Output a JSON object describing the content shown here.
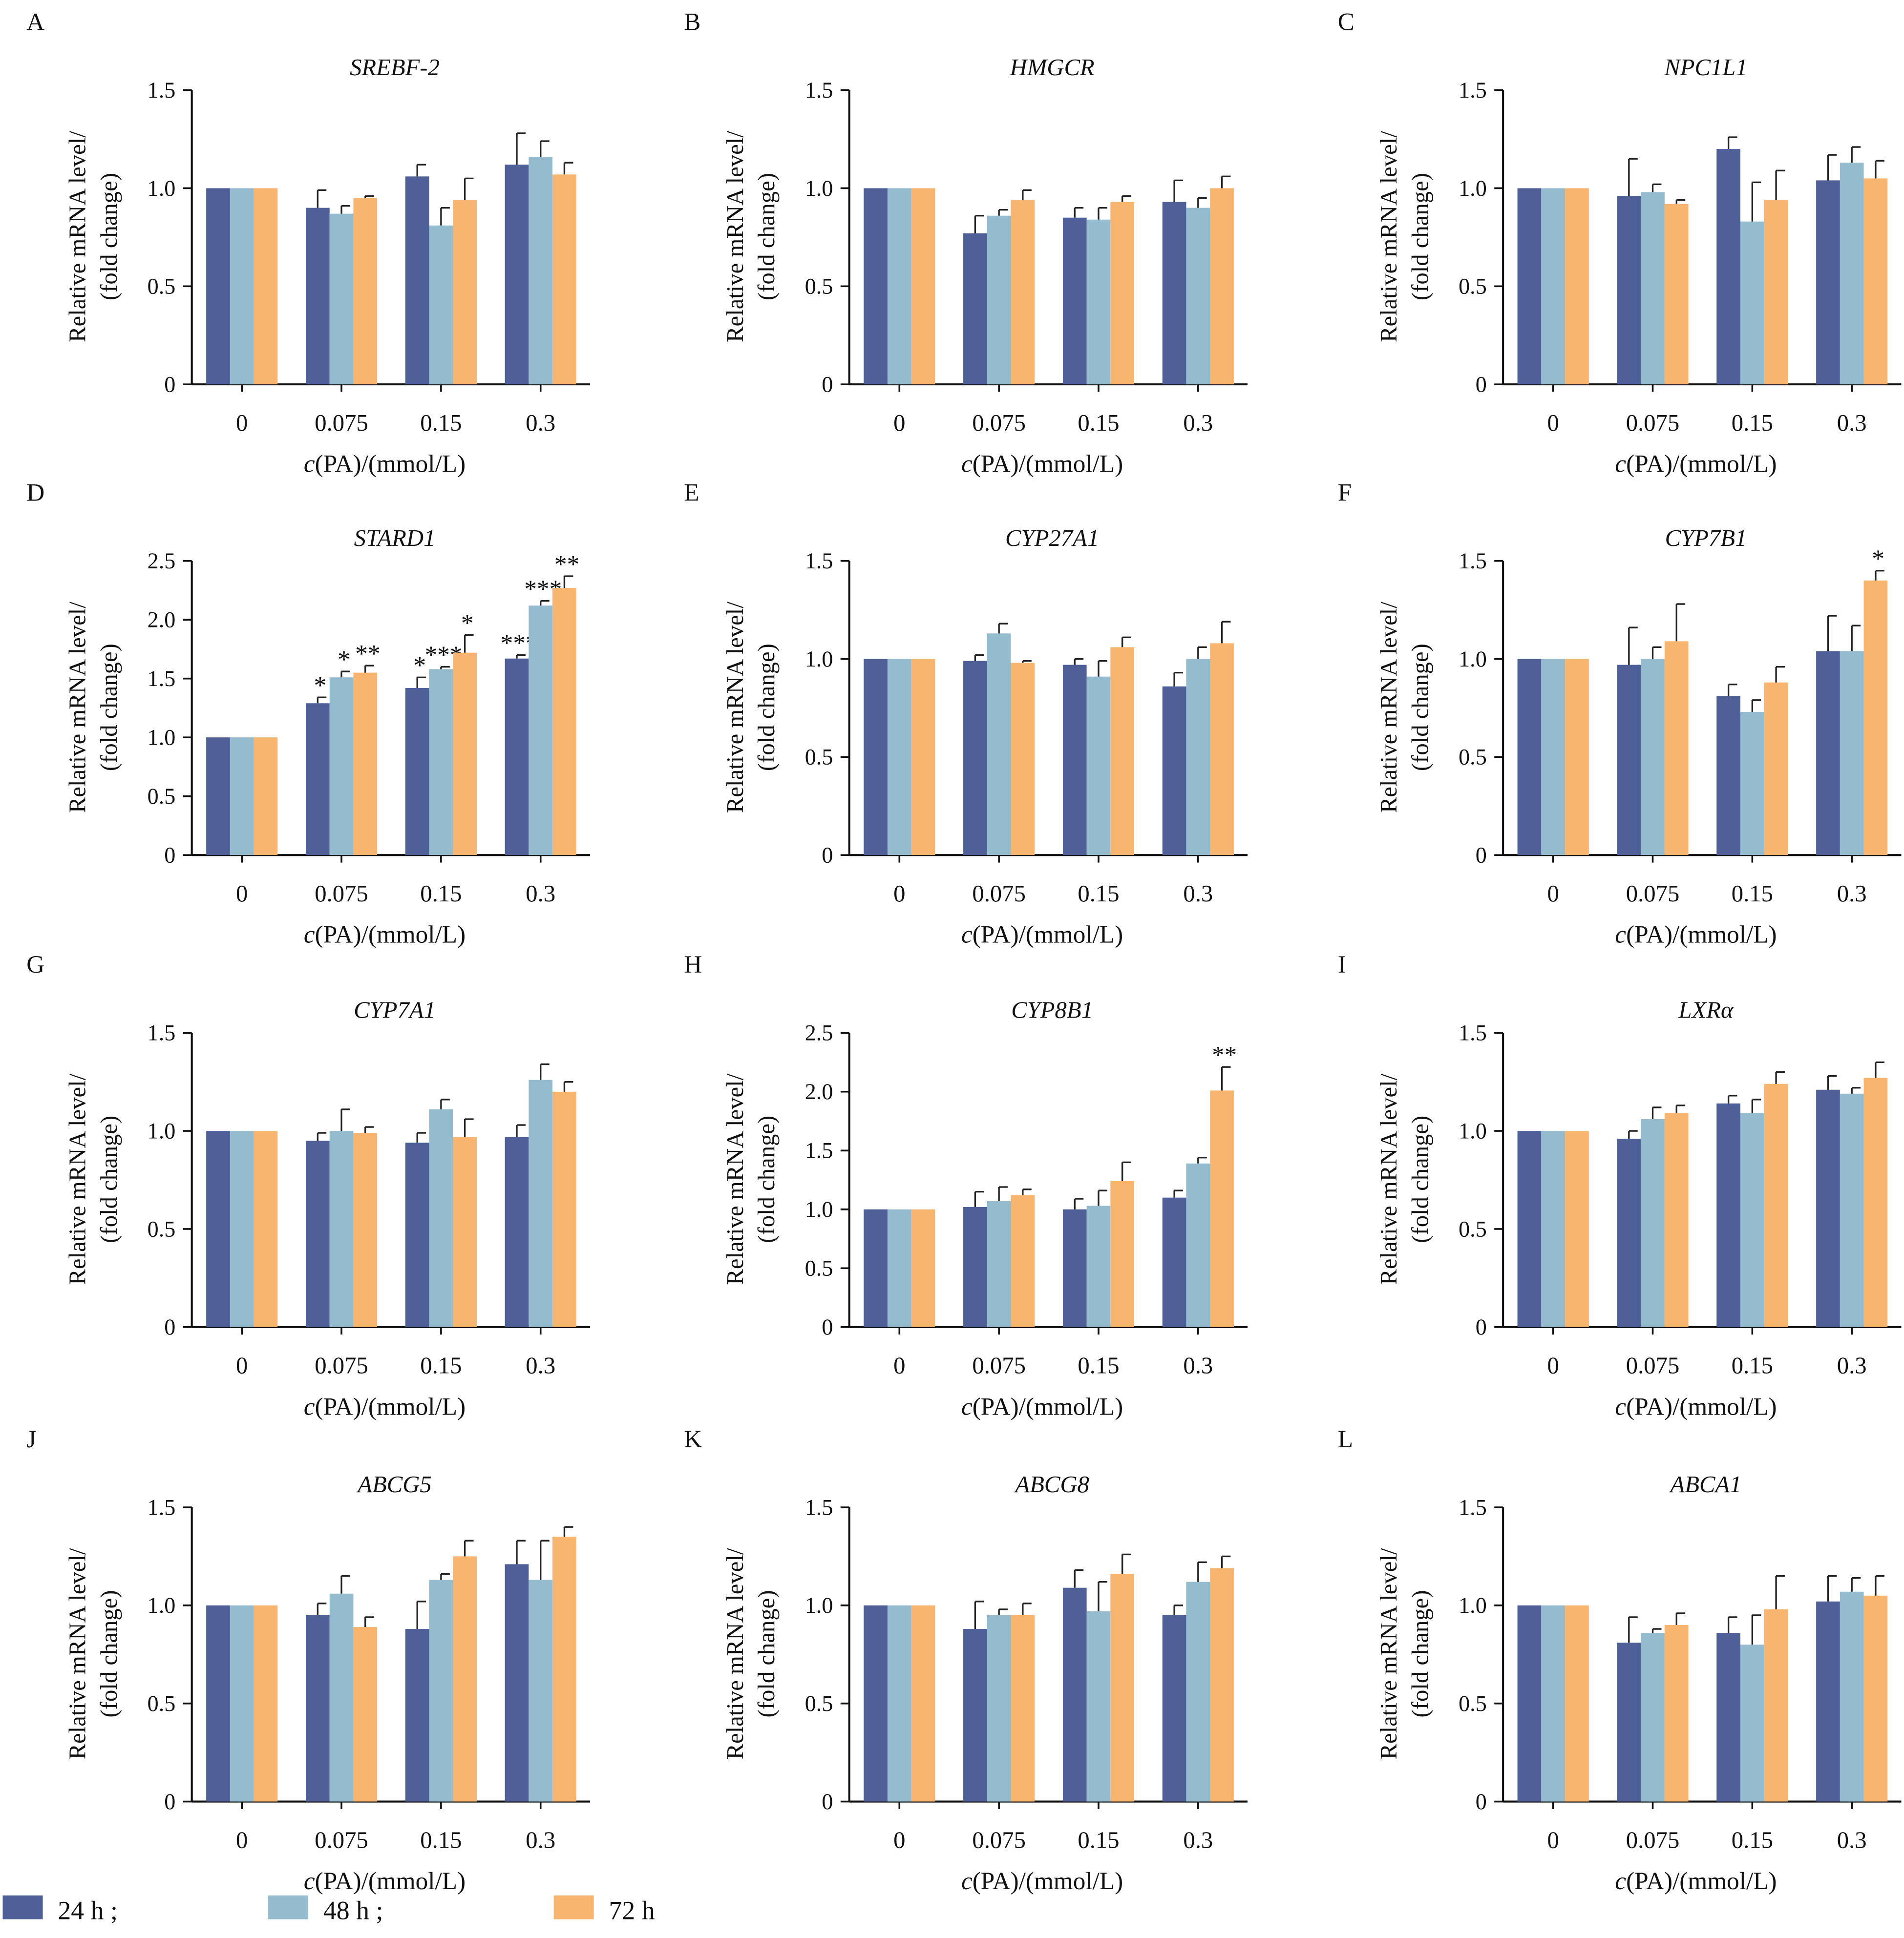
{
  "chart_data": {
    "type": "bar",
    "categories": [
      "0",
      "0.075",
      "0.15",
      "0.3"
    ],
    "xlabel": "c(PA)/(mmol/L)",
    "ylabel": [
      "Relative mRNA level/",
      "(fold change)"
    ],
    "legend": {
      "placement": "bottom-left",
      "labels": [
        "24 h ;",
        "48 h ;",
        "72 h"
      ]
    },
    "series_names": [
      "24 h",
      "48 h",
      "72 h"
    ],
    "colors": [
      "#4f5f98",
      "#95bbcf",
      "#f7b56f"
    ],
    "grid": false,
    "panels": [
      {
        "letter": "A",
        "title": "SREBF-2",
        "ylim": [
          0,
          1.5
        ],
        "yticks": [
          "0",
          "0.5",
          "1.0",
          "1.5"
        ],
        "values": [
          [
            1,
            0.9,
            1.06,
            1.12
          ],
          [
            1,
            0.87,
            0.81,
            1.16
          ],
          [
            1,
            0.95,
            0.94,
            1.07
          ]
        ],
        "errors": [
          [
            0,
            0.09,
            0.06,
            0.16
          ],
          [
            0,
            0.04,
            0.09,
            0.08
          ],
          [
            0,
            0.01,
            0.11,
            0.06
          ]
        ],
        "stars": [
          [
            "",
            "",
            "",
            ""
          ],
          [
            "",
            "",
            "",
            ""
          ],
          [
            "",
            "",
            "",
            ""
          ]
        ]
      },
      {
        "letter": "B",
        "title": "HMGCR",
        "ylim": [
          0,
          1.5
        ],
        "yticks": [
          "0",
          "0.5",
          "1.0",
          "1.5"
        ],
        "values": [
          [
            1,
            0.77,
            0.85,
            0.93
          ],
          [
            1,
            0.86,
            0.84,
            0.9
          ],
          [
            1,
            0.94,
            0.93,
            1.0
          ]
        ],
        "errors": [
          [
            0,
            0.09,
            0.05,
            0.11
          ],
          [
            0,
            0.03,
            0.06,
            0.05
          ],
          [
            0,
            0.05,
            0.03,
            0.06
          ]
        ],
        "stars": [
          [
            "",
            "",
            "",
            ""
          ],
          [
            "",
            "",
            "",
            ""
          ],
          [
            "",
            "",
            "",
            ""
          ]
        ]
      },
      {
        "letter": "C",
        "title": "NPC1L1",
        "ylim": [
          0,
          1.5
        ],
        "yticks": [
          "0",
          "0.5",
          "1.0",
          "1.5"
        ],
        "values": [
          [
            1,
            0.96,
            1.2,
            1.04
          ],
          [
            1,
            0.98,
            0.83,
            1.13
          ],
          [
            1,
            0.92,
            0.94,
            1.05
          ]
        ],
        "errors": [
          [
            0,
            0.19,
            0.06,
            0.13
          ],
          [
            0,
            0.04,
            0.2,
            0.08
          ],
          [
            0,
            0.02,
            0.15,
            0.09
          ]
        ],
        "stars": [
          [
            "",
            "",
            "",
            ""
          ],
          [
            "",
            "",
            "",
            ""
          ],
          [
            "",
            "",
            "",
            ""
          ]
        ]
      },
      {
        "letter": "D",
        "title": "STARD1",
        "ylim": [
          0,
          2.5
        ],
        "yticks": [
          "0",
          "0.5",
          "1.0",
          "1.5",
          "2.0",
          "2.5"
        ],
        "values": [
          [
            1,
            1.29,
            1.42,
            1.67
          ],
          [
            1,
            1.51,
            1.58,
            2.12
          ],
          [
            1,
            1.55,
            1.72,
            2.27
          ]
        ],
        "errors": [
          [
            0,
            0.05,
            0.09,
            0.03
          ],
          [
            0,
            0.05,
            0.02,
            0.04
          ],
          [
            0,
            0.06,
            0.15,
            0.1
          ]
        ],
        "stars": [
          [
            "",
            "*",
            "*",
            "***"
          ],
          [
            "",
            "*",
            "***",
            "***"
          ],
          [
            "",
            "**",
            "*",
            "**"
          ]
        ]
      },
      {
        "letter": "E",
        "title": "CYP27A1",
        "ylim": [
          0,
          1.5
        ],
        "yticks": [
          "0",
          "0.5",
          "1.0",
          "1.5"
        ],
        "values": [
          [
            1,
            0.99,
            0.97,
            0.86
          ],
          [
            1,
            1.13,
            0.91,
            1.0
          ],
          [
            1,
            0.98,
            1.06,
            1.08
          ]
        ],
        "errors": [
          [
            0,
            0.03,
            0.03,
            0.07
          ],
          [
            0,
            0.05,
            0.08,
            0.06
          ],
          [
            0,
            0.01,
            0.05,
            0.11
          ]
        ],
        "stars": [
          [
            "",
            "",
            "",
            ""
          ],
          [
            "",
            "",
            "",
            ""
          ],
          [
            "",
            "",
            "",
            ""
          ]
        ]
      },
      {
        "letter": "F",
        "title": "CYP7B1",
        "ylim": [
          0,
          1.5
        ],
        "yticks": [
          "0",
          "0.5",
          "1.0",
          "1.5"
        ],
        "values": [
          [
            1,
            0.97,
            0.81,
            1.04
          ],
          [
            1,
            1.0,
            0.73,
            1.04
          ],
          [
            1,
            1.09,
            0.88,
            1.4
          ]
        ],
        "errors": [
          [
            0,
            0.19,
            0.06,
            0.18
          ],
          [
            0,
            0.06,
            0.06,
            0.13
          ],
          [
            0,
            0.19,
            0.08,
            0.05
          ]
        ],
        "stars": [
          [
            "",
            "",
            "",
            ""
          ],
          [
            "",
            "",
            "",
            ""
          ],
          [
            "",
            "",
            "",
            "*"
          ]
        ]
      },
      {
        "letter": "G",
        "title": "CYP7A1",
        "ylim": [
          0,
          1.5
        ],
        "yticks": [
          "0",
          "0.5",
          "1.0",
          "1.5"
        ],
        "values": [
          [
            1,
            0.95,
            0.94,
            0.97
          ],
          [
            1,
            1.0,
            1.11,
            1.26
          ],
          [
            1,
            0.99,
            0.97,
            1.2
          ]
        ],
        "errors": [
          [
            0,
            0.04,
            0.05,
            0.06
          ],
          [
            0,
            0.11,
            0.05,
            0.08
          ],
          [
            0,
            0.03,
            0.09,
            0.05
          ]
        ],
        "stars": [
          [
            "",
            "",
            "",
            ""
          ],
          [
            "",
            "",
            "",
            ""
          ],
          [
            "",
            "",
            "",
            ""
          ]
        ]
      },
      {
        "letter": "H",
        "title": "CYP8B1",
        "ylim": [
          0,
          2.5
        ],
        "yticks": [
          "0",
          "0.5",
          "1.0",
          "1.5",
          "2.0",
          "2.5"
        ],
        "values": [
          [
            1,
            1.02,
            1.0,
            1.1
          ],
          [
            1,
            1.07,
            1.03,
            1.39
          ],
          [
            1,
            1.12,
            1.24,
            2.01
          ]
        ],
        "errors": [
          [
            0,
            0.13,
            0.09,
            0.06
          ],
          [
            0,
            0.12,
            0.13,
            0.05
          ],
          [
            0,
            0.05,
            0.16,
            0.2
          ]
        ],
        "stars": [
          [
            "",
            "",
            "",
            ""
          ],
          [
            "",
            "",
            "",
            ""
          ],
          [
            "",
            "",
            "",
            "**"
          ]
        ]
      },
      {
        "letter": "I",
        "title": "LXRα",
        "ylim": [
          0,
          1.5
        ],
        "yticks": [
          "0",
          "0.5",
          "1.0",
          "1.5"
        ],
        "values": [
          [
            1,
            0.96,
            1.14,
            1.21
          ],
          [
            1,
            1.06,
            1.09,
            1.19
          ],
          [
            1,
            1.09,
            1.24,
            1.27
          ]
        ],
        "errors": [
          [
            0,
            0.04,
            0.04,
            0.07
          ],
          [
            0,
            0.06,
            0.07,
            0.03
          ],
          [
            0,
            0.04,
            0.06,
            0.08
          ]
        ],
        "stars": [
          [
            "",
            "",
            "",
            ""
          ],
          [
            "",
            "",
            "",
            ""
          ],
          [
            "",
            "",
            "",
            ""
          ]
        ]
      },
      {
        "letter": "J",
        "title": "ABCG5",
        "ylim": [
          0,
          1.5
        ],
        "yticks": [
          "0",
          "0.5",
          "1.0",
          "1.5"
        ],
        "values": [
          [
            1,
            0.95,
            0.88,
            1.21
          ],
          [
            1,
            1.06,
            1.13,
            1.13
          ],
          [
            1,
            0.89,
            1.25,
            1.35
          ]
        ],
        "errors": [
          [
            0,
            0.06,
            0.14,
            0.12
          ],
          [
            0,
            0.09,
            0.03,
            0.2
          ],
          [
            0,
            0.05,
            0.08,
            0.05
          ]
        ],
        "stars": [
          [
            "",
            "",
            "",
            ""
          ],
          [
            "",
            "",
            "",
            ""
          ],
          [
            "",
            "",
            "",
            ""
          ]
        ]
      },
      {
        "letter": "K",
        "title": "ABCG8",
        "ylim": [
          0,
          1.5
        ],
        "yticks": [
          "0",
          "0.5",
          "1.0",
          "1.5"
        ],
        "values": [
          [
            1,
            0.88,
            1.09,
            0.95
          ],
          [
            1,
            0.95,
            0.97,
            1.12
          ],
          [
            1,
            0.95,
            1.16,
            1.19
          ]
        ],
        "errors": [
          [
            0,
            0.14,
            0.09,
            0.05
          ],
          [
            0,
            0.03,
            0.15,
            0.1
          ],
          [
            0,
            0.06,
            0.1,
            0.06
          ]
        ],
        "stars": [
          [
            "",
            "",
            "",
            ""
          ],
          [
            "",
            "",
            "",
            ""
          ],
          [
            "",
            "",
            "",
            ""
          ]
        ]
      },
      {
        "letter": "L",
        "title": "ABCA1",
        "ylim": [
          0,
          1.5
        ],
        "yticks": [
          "0",
          "0.5",
          "1.0",
          "1.5"
        ],
        "values": [
          [
            1,
            0.81,
            0.86,
            1.02
          ],
          [
            1,
            0.86,
            0.8,
            1.07
          ],
          [
            1,
            0.9,
            0.98,
            1.05
          ]
        ],
        "errors": [
          [
            0,
            0.13,
            0.08,
            0.13
          ],
          [
            0,
            0.02,
            0.15,
            0.07
          ],
          [
            0,
            0.06,
            0.17,
            0.1
          ]
        ],
        "stars": [
          [
            "",
            "",
            "",
            ""
          ],
          [
            "",
            "",
            "",
            ""
          ],
          [
            "",
            "",
            "",
            ""
          ]
        ]
      }
    ]
  }
}
